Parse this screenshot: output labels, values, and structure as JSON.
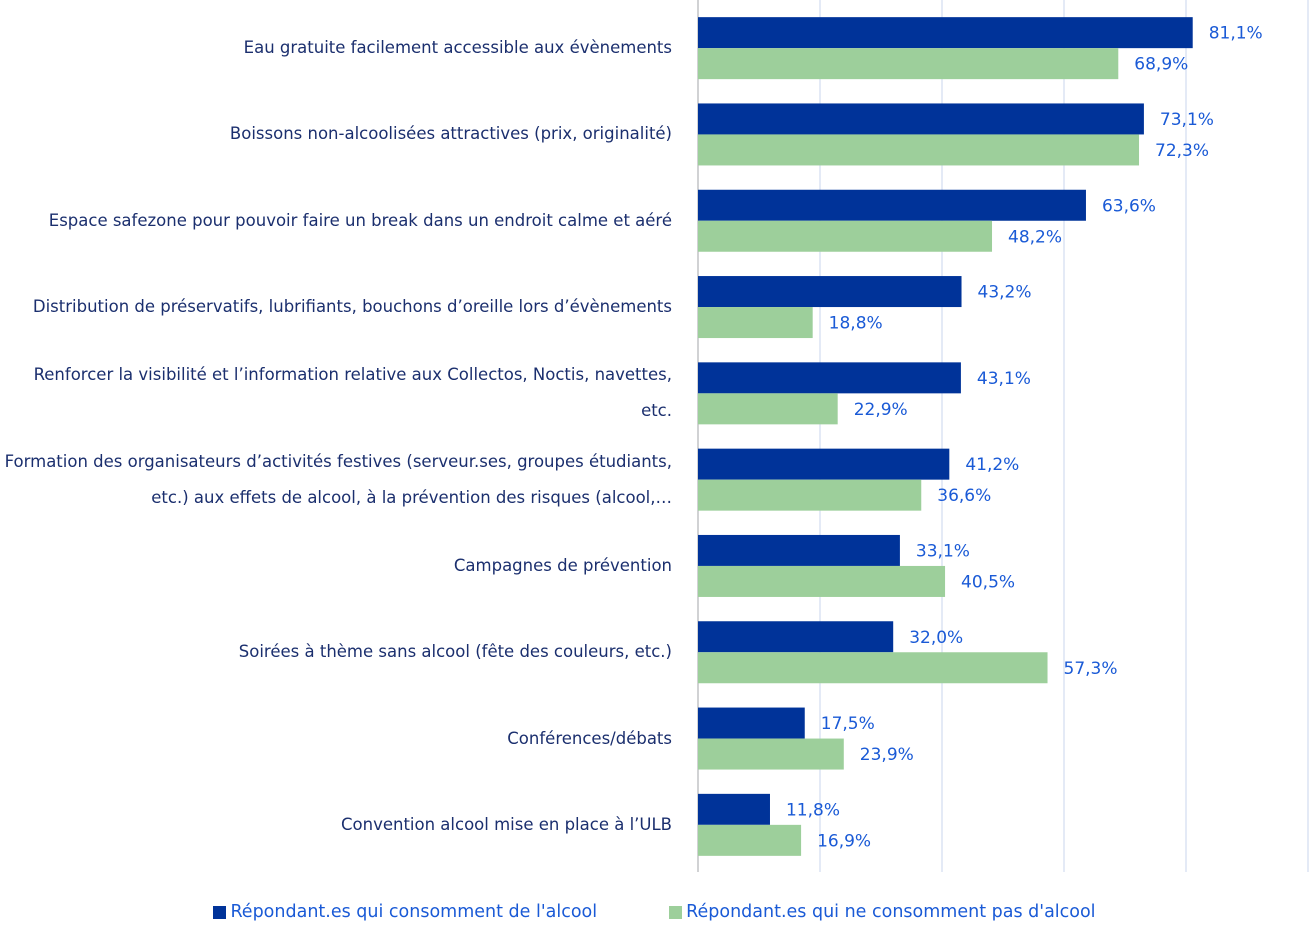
{
  "chart_data": {
    "type": "barh",
    "categories": [
      "Eau gratuite facilement accessible aux évènements",
      "Boissons non-alcoolisées attractives (prix, originalité)",
      "Espace safezone pour pouvoir faire un break dans un endroit calme et aéré",
      "Distribution de préservatifs, lubrifiants, bouchons d’oreille lors d’évènements",
      "Renforcer la visibilité et l’information relative aux Collectos, Noctis, navettes, etc.",
      "Formation des organisateurs d’activités festives (serveur.ses, groupes étudiants, etc.) aux effets de  alcool, à la prévention des risques (alcool,…",
      "Campagnes de prévention",
      "Soirées à thème sans alcool (fête des couleurs, etc.)",
      "Conférences/débats",
      "Convention alcool mise en place à l’ULB"
    ],
    "series": [
      {
        "name": "Répondant.es qui consomment de l'alcool",
        "color": "#003399",
        "values": [
          81.1,
          73.1,
          63.6,
          43.2,
          43.1,
          41.2,
          33.1,
          32.0,
          17.5,
          11.8
        ],
        "value_labels": [
          "81,1%",
          "73,1%",
          "63,6%",
          "43,2%",
          "43,1%",
          "41,2%",
          "33,1%",
          "32,0%",
          "17,5%",
          "11,8%"
        ]
      },
      {
        "name": "Répondant.es qui ne consomment pas d'alcool",
        "color": "#9dcf9b",
        "values": [
          68.9,
          72.3,
          48.2,
          18.8,
          22.9,
          36.6,
          40.5,
          57.3,
          23.9,
          16.9
        ],
        "value_labels": [
          "68,9%",
          "72,3%",
          "48,2%",
          "18,8%",
          "22,9%",
          "36,6%",
          "40,5%",
          "57,3%",
          "23,9%",
          "16,9%"
        ]
      }
    ],
    "xlim": [
      0,
      100
    ],
    "xticks": [
      0,
      20,
      40,
      60,
      80,
      100
    ],
    "grid": true,
    "legend": "bottom"
  }
}
